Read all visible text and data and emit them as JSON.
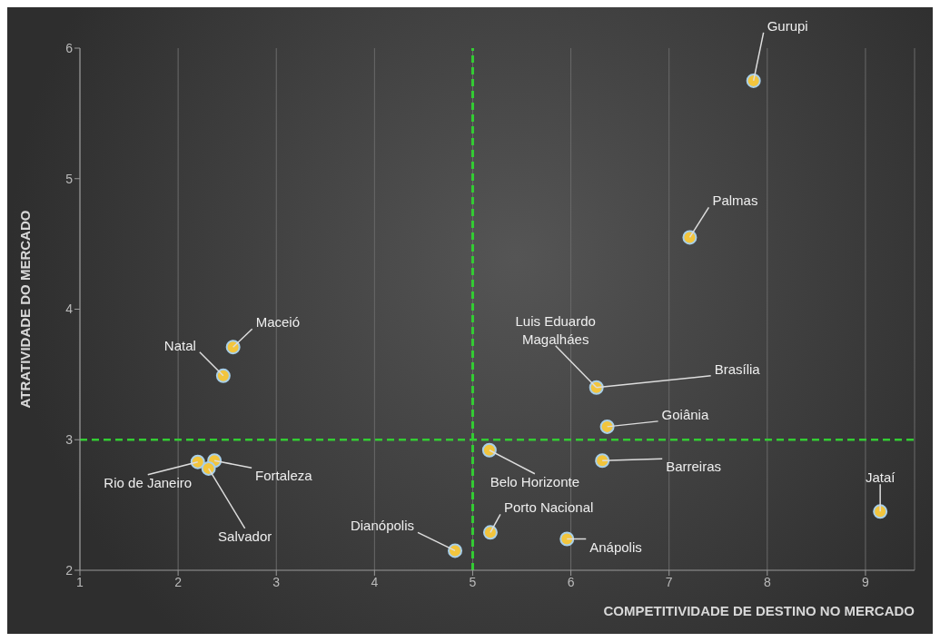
{
  "chart_data": {
    "type": "scatter",
    "xlabel": "COMPETITIVIDADE DE DESTINO NO MERCADO",
    "ylabel": "ATRATIVIDADE DO MERCADO",
    "xlim": [
      1,
      9.5
    ],
    "xticks": [
      1,
      2,
      3,
      4,
      5,
      6,
      7,
      8,
      9
    ],
    "ylim": [
      2,
      6
    ],
    "yticks": [
      2,
      3,
      4,
      5,
      6
    ],
    "grid": "x",
    "marker": "circle",
    "series": [
      {
        "color": "#f2c53d",
        "x": [
          7.86,
          7.21,
          2.56,
          2.46,
          6.26,
          6.37,
          5.17,
          6.32,
          2.2,
          2.37,
          2.31,
          9.15,
          5.18,
          5.96,
          4.82
        ],
        "values": [
          5.75,
          4.55,
          3.71,
          3.49,
          3.4,
          3.1,
          2.92,
          2.84,
          2.83,
          2.84,
          2.78,
          2.45,
          2.29,
          2.24,
          2.15
        ]
      }
    ],
    "ref_lines": [
      {
        "axis": "x",
        "value": 5,
        "color": "#33cc33",
        "line_style": "dashed"
      },
      {
        "axis": "y",
        "value": 3,
        "color": "#33cc33",
        "line_style": "dashed"
      }
    ],
    "annotations": [
      {
        "text": "Gurupi",
        "x": 7.86,
        "y": 5.75
      },
      {
        "text": "Palmas",
        "x": 7.21,
        "y": 4.55
      },
      {
        "text": "Maceió",
        "x": 2.56,
        "y": 3.71
      },
      {
        "text": "Natal",
        "x": 2.46,
        "y": 3.49
      },
      {
        "text": "Luis Eduardo Magalháes",
        "x": 6.26,
        "y": 3.4
      },
      {
        "text": "Brasília",
        "x": 6.26,
        "y": 3.4
      },
      {
        "text": "Goiânia",
        "x": 6.37,
        "y": 3.1
      },
      {
        "text": "Belo Horizonte",
        "x": 5.17,
        "y": 2.92
      },
      {
        "text": "Barreiras",
        "x": 6.32,
        "y": 2.84
      },
      {
        "text": "Rio de Janeiro",
        "x": 2.2,
        "y": 2.83
      },
      {
        "text": "Fortaleza",
        "x": 2.37,
        "y": 2.84
      },
      {
        "text": "Salvador",
        "x": 2.31,
        "y": 2.78
      },
      {
        "text": "Jataí",
        "x": 9.15,
        "y": 2.45
      },
      {
        "text": "Porto Nacional",
        "x": 5.18,
        "y": 2.29
      },
      {
        "text": "Anápolis",
        "x": 5.96,
        "y": 2.24
      },
      {
        "text": "Dianópolis",
        "x": 4.82,
        "y": 2.15
      }
    ]
  }
}
